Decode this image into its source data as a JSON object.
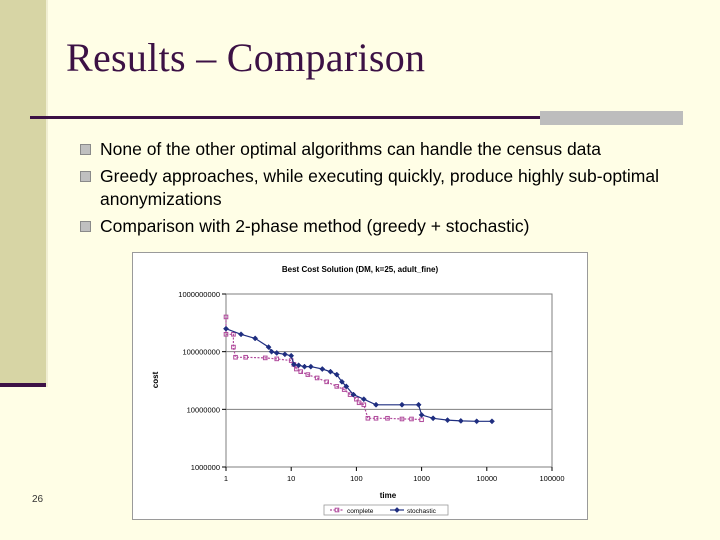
{
  "slide": {
    "title": "Results – Comparison",
    "number": "26",
    "bullets": [
      "None of the other optimal algorithms can handle the census data",
      "Greedy approaches, while executing quickly, produce highly sub-optimal anonymizations",
      "Comparison with 2-phase method (greedy + stochastic)"
    ],
    "colors": {
      "title": "#3c1145",
      "background": "#fffee6",
      "sidebar": "#d7d5a5"
    }
  },
  "chart_data": {
    "type": "line",
    "title": "Best Cost Solution (DM, k=25, adult_fine)",
    "xlabel": "time",
    "ylabel": "cost",
    "xscale": "log",
    "yscale": "log",
    "xlim": [
      1,
      100000
    ],
    "ylim": [
      1000000,
      1000000000
    ],
    "x_ticks": [
      "1",
      "10",
      "100",
      "1000",
      "10000",
      "100000"
    ],
    "y_ticks": [
      "1000000000",
      "100000000",
      "10000000",
      "1000000"
    ],
    "grid": "horizontal",
    "legend_position": "bottom",
    "series": [
      {
        "name": "complete",
        "color": "#b04a9c",
        "marker": "square",
        "points": [
          [
            1,
            400000000
          ],
          [
            1,
            200000000
          ],
          [
            1.3,
            200000000
          ],
          [
            1.3,
            120000000
          ],
          [
            1.4,
            80000000
          ],
          [
            2,
            80000000
          ],
          [
            4,
            78000000
          ],
          [
            6,
            75000000
          ],
          [
            10,
            70000000
          ],
          [
            11,
            60000000
          ],
          [
            12,
            50000000
          ],
          [
            14,
            45000000
          ],
          [
            18,
            40000000
          ],
          [
            25,
            35000000
          ],
          [
            35,
            30000000
          ],
          [
            50,
            25000000
          ],
          [
            65,
            22000000
          ],
          [
            80,
            18000000
          ],
          [
            100,
            15000000
          ],
          [
            110,
            13000000
          ],
          [
            130,
            12000000
          ],
          [
            150,
            7000000
          ],
          [
            200,
            7000000
          ],
          [
            300,
            7000000
          ],
          [
            500,
            6800000
          ],
          [
            700,
            6800000
          ],
          [
            1000,
            6600000
          ]
        ]
      },
      {
        "name": "stochastic",
        "color": "#1f2e80",
        "marker": "diamond",
        "points": [
          [
            1,
            250000000
          ],
          [
            1.7,
            200000000
          ],
          [
            2.8,
            170000000
          ],
          [
            4.5,
            120000000
          ],
          [
            5,
            100000000
          ],
          [
            6,
            95000000
          ],
          [
            8,
            90000000
          ],
          [
            10,
            85000000
          ],
          [
            11,
            60000000
          ],
          [
            13,
            58000000
          ],
          [
            16,
            55000000
          ],
          [
            20,
            55000000
          ],
          [
            30,
            50000000
          ],
          [
            40,
            45000000
          ],
          [
            50,
            40000000
          ],
          [
            60,
            30000000
          ],
          [
            70,
            25000000
          ],
          [
            90,
            18000000
          ],
          [
            130,
            15000000
          ],
          [
            200,
            12000000
          ],
          [
            500,
            12000000
          ],
          [
            900,
            12000000
          ],
          [
            1000,
            8000000
          ],
          [
            1500,
            7000000
          ],
          [
            2500,
            6500000
          ],
          [
            4000,
            6300000
          ],
          [
            7000,
            6200000
          ],
          [
            12000,
            6200000
          ]
        ]
      }
    ]
  }
}
